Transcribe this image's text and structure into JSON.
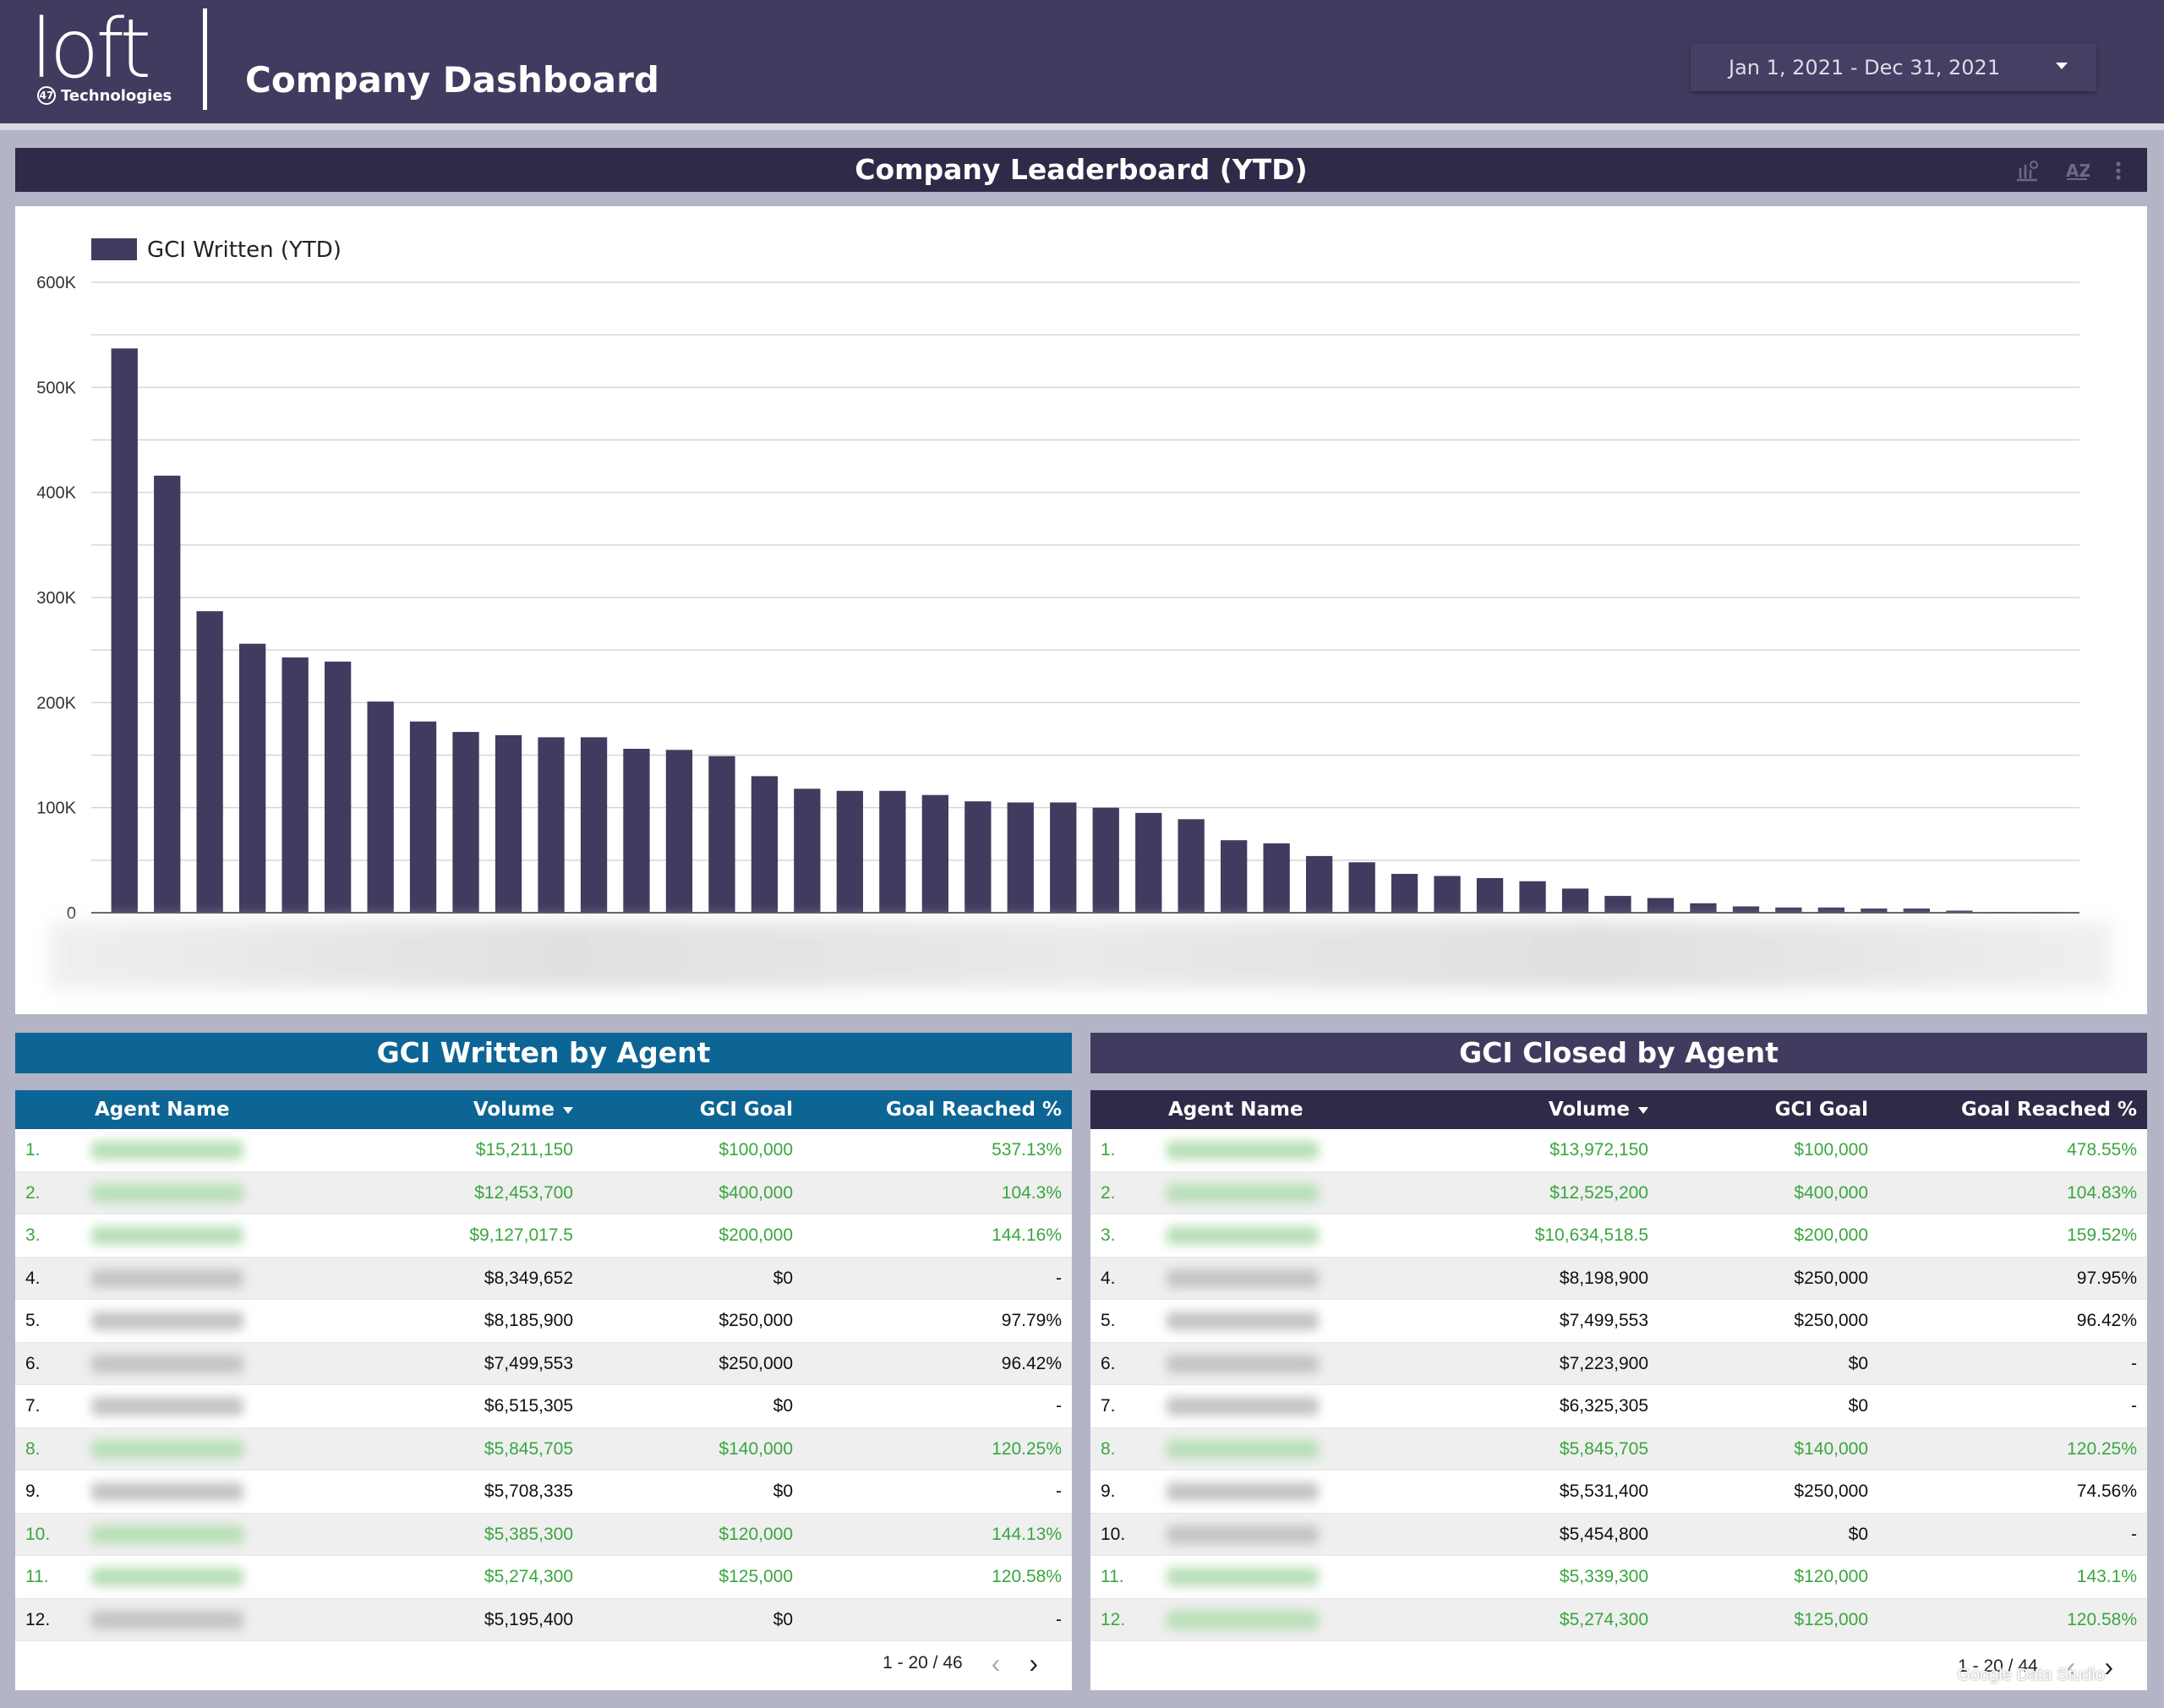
{
  "header": {
    "logo_text": "loft",
    "logo_sub": "Technologies",
    "logo_badge": "47",
    "title": "Company Dashboard",
    "date_range": "Jan 1, 2021 - Dec 31, 2021"
  },
  "leaderboard": {
    "title": "Company Leaderboard (YTD)",
    "legend": "GCI Written (YTD)"
  },
  "chart_data": {
    "type": "bar",
    "title": "Company Leaderboard (YTD)",
    "series": [
      {
        "name": "GCI Written (YTD)",
        "values": [
          537000,
          416000,
          287000,
          256000,
          243000,
          239000,
          201000,
          182000,
          172000,
          169000,
          167000,
          167000,
          156000,
          155000,
          149000,
          130000,
          118000,
          116000,
          116000,
          112000,
          106000,
          105000,
          105000,
          100000,
          95000,
          89000,
          69000,
          66000,
          54000,
          48000,
          37000,
          35000,
          33000,
          30000,
          23000,
          16000,
          14000,
          9000,
          6000,
          5000,
          5000,
          4000,
          4000,
          2000,
          500,
          300
        ]
      }
    ],
    "ylim": [
      0,
      600000
    ],
    "yticks": [
      "0",
      "100K",
      "200K",
      "300K",
      "400K",
      "500K",
      "600K"
    ],
    "grid": true,
    "legend_position": "top-left",
    "color": "#403b5f"
  },
  "written_table": {
    "title": "GCI Written by Agent",
    "columns": [
      "Agent Name",
      "Volume",
      "GCI Goal",
      "Goal Reached %"
    ],
    "rows": [
      {
        "rank": "1.",
        "volume": "$15,211,150",
        "goal": "$100,000",
        "pct": "537.13%",
        "green": true
      },
      {
        "rank": "2.",
        "volume": "$12,453,700",
        "goal": "$400,000",
        "pct": "104.3%",
        "green": true
      },
      {
        "rank": "3.",
        "volume": "$9,127,017.5",
        "goal": "$200,000",
        "pct": "144.16%",
        "green": true
      },
      {
        "rank": "4.",
        "volume": "$8,349,652",
        "goal": "$0",
        "pct": "-",
        "green": false
      },
      {
        "rank": "5.",
        "volume": "$8,185,900",
        "goal": "$250,000",
        "pct": "97.79%",
        "green": false
      },
      {
        "rank": "6.",
        "volume": "$7,499,553",
        "goal": "$250,000",
        "pct": "96.42%",
        "green": false
      },
      {
        "rank": "7.",
        "volume": "$6,515,305",
        "goal": "$0",
        "pct": "-",
        "green": false
      },
      {
        "rank": "8.",
        "volume": "$5,845,705",
        "goal": "$140,000",
        "pct": "120.25%",
        "green": true
      },
      {
        "rank": "9.",
        "volume": "$5,708,335",
        "goal": "$0",
        "pct": "-",
        "green": false
      },
      {
        "rank": "10.",
        "volume": "$5,385,300",
        "goal": "$120,000",
        "pct": "144.13%",
        "green": true
      },
      {
        "rank": "11.",
        "volume": "$5,274,300",
        "goal": "$125,000",
        "pct": "120.58%",
        "green": true
      },
      {
        "rank": "12.",
        "volume": "$5,195,400",
        "goal": "$0",
        "pct": "-",
        "green": false
      }
    ],
    "pager": "1 - 20 / 46"
  },
  "closed_table": {
    "title": "GCI Closed by Agent",
    "columns": [
      "Agent Name",
      "Volume",
      "GCI Goal",
      "Goal Reached %"
    ],
    "rows": [
      {
        "rank": "1.",
        "volume": "$13,972,150",
        "goal": "$100,000",
        "pct": "478.55%",
        "green": true
      },
      {
        "rank": "2.",
        "volume": "$12,525,200",
        "goal": "$400,000",
        "pct": "104.83%",
        "green": true
      },
      {
        "rank": "3.",
        "volume": "$10,634,518.5",
        "goal": "$200,000",
        "pct": "159.52%",
        "green": true
      },
      {
        "rank": "4.",
        "volume": "$8,198,900",
        "goal": "$250,000",
        "pct": "97.95%",
        "green": false
      },
      {
        "rank": "5.",
        "volume": "$7,499,553",
        "goal": "$250,000",
        "pct": "96.42%",
        "green": false
      },
      {
        "rank": "6.",
        "volume": "$7,223,900",
        "goal": "$0",
        "pct": "-",
        "green": false
      },
      {
        "rank": "7.",
        "volume": "$6,325,305",
        "goal": "$0",
        "pct": "-",
        "green": false
      },
      {
        "rank": "8.",
        "volume": "$5,845,705",
        "goal": "$140,000",
        "pct": "120.25%",
        "green": true
      },
      {
        "rank": "9.",
        "volume": "$5,531,400",
        "goal": "$250,000",
        "pct": "74.56%",
        "green": false
      },
      {
        "rank": "10.",
        "volume": "$5,454,800",
        "goal": "$0",
        "pct": "-",
        "green": false
      },
      {
        "rank": "11.",
        "volume": "$5,339,300",
        "goal": "$120,000",
        "pct": "143.1%",
        "green": true
      },
      {
        "rank": "12.",
        "volume": "$5,274,300",
        "goal": "$125,000",
        "pct": "120.58%",
        "green": true
      }
    ],
    "pager": "1 - 20 / 44"
  },
  "watermark": "Google Data Studio",
  "icons": [
    "chart-settings-icon",
    "sort-az-icon",
    "more-vert-icon",
    "chevron-left-icon",
    "chevron-right-icon",
    "dropdown-caret-icon"
  ]
}
